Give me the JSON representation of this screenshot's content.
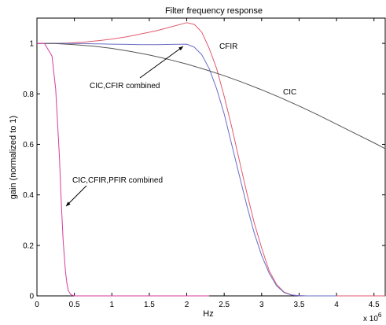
{
  "chart_data": {
    "type": "line",
    "title": "Filter frequency response",
    "xlabel": "Hz",
    "ylabel": "gain (normalized to 1)",
    "x_multiplier": "x 10",
    "x_multiplier_exponent": "6",
    "xlim": [
      0,
      4.65
    ],
    "ylim": [
      0,
      1.1
    ],
    "xticks": [
      0,
      0.5,
      1,
      1.5,
      2,
      2.5,
      3,
      3.5,
      4,
      4.5
    ],
    "xtick_labels": [
      "0",
      "0.5",
      "1",
      "1.5",
      "2",
      "2.5",
      "3",
      "3.5",
      "4",
      "4.5"
    ],
    "yticks": [
      0,
      0.2,
      0.4,
      0.6,
      0.8,
      1
    ],
    "ytick_labels": [
      "0",
      "0.2",
      "0.4",
      "0.6",
      "0.8",
      "1"
    ],
    "grid": false,
    "legend": "none",
    "series": [
      {
        "color": "#e05a6e",
        "x": [
          0,
          0.2,
          0.4,
          0.6,
          0.8,
          1.0,
          1.2,
          1.4,
          1.6,
          1.8,
          2.0,
          2.1,
          2.2,
          2.3,
          2.4,
          2.5,
          2.6,
          2.7,
          2.8,
          2.9,
          3.0,
          3.1,
          3.2,
          3.3,
          3.4,
          3.5,
          3.6,
          3.8,
          4.0,
          4.5,
          4.65
        ],
        "y": [
          1.0,
          1.0,
          1.001,
          1.004,
          1.01,
          1.017,
          1.026,
          1.038,
          1.05,
          1.066,
          1.082,
          1.075,
          1.045,
          0.98,
          0.9,
          0.79,
          0.67,
          0.54,
          0.41,
          0.29,
          0.19,
          0.1,
          0.045,
          0.015,
          0.004,
          0.001,
          0.0,
          0.0,
          0.0,
          0.0,
          0.0
        ]
      },
      {
        "color": "#6a6cc6",
        "x": [
          0,
          0.2,
          0.4,
          0.6,
          0.8,
          1.0,
          1.2,
          1.4,
          1.6,
          1.8,
          2.0,
          2.1,
          2.2,
          2.3,
          2.4,
          2.5,
          2.6,
          2.7,
          2.8,
          2.9,
          3.0,
          3.1,
          3.2,
          3.3,
          3.4,
          3.5,
          3.6,
          3.8,
          4.0
        ],
        "y": [
          1.0,
          1.0,
          1.0,
          0.999,
          0.998,
          0.997,
          0.996,
          0.995,
          0.995,
          0.996,
          0.997,
          0.985,
          0.955,
          0.9,
          0.82,
          0.72,
          0.6,
          0.48,
          0.36,
          0.25,
          0.16,
          0.09,
          0.04,
          0.013,
          0.003,
          0.001,
          0.0,
          0.0,
          0.0
        ]
      },
      {
        "color": "#555555",
        "x": [
          0,
          0.25,
          0.5,
          0.75,
          1.0,
          1.25,
          1.5,
          1.75,
          2.0,
          2.25,
          2.5,
          2.75,
          3.0,
          3.25,
          3.5,
          3.75,
          4.0,
          4.25,
          4.5,
          4.65
        ],
        "y": [
          1.0,
          0.999,
          0.995,
          0.989,
          0.98,
          0.968,
          0.954,
          0.937,
          0.918,
          0.896,
          0.872,
          0.845,
          0.816,
          0.785,
          0.752,
          0.717,
          0.68,
          0.643,
          0.606,
          0.583
        ]
      },
      {
        "color": "#d63ca0",
        "x": [
          0,
          0.1,
          0.2,
          0.25,
          0.3,
          0.32,
          0.35,
          0.38,
          0.4,
          0.42,
          0.45,
          0.48,
          0.5,
          0.6,
          0.8,
          1.0,
          1.5,
          2.0,
          2.3
        ],
        "y": [
          1.0,
          1.0,
          0.95,
          0.82,
          0.55,
          0.4,
          0.22,
          0.1,
          0.05,
          0.02,
          0.006,
          0.002,
          0.0,
          0.0,
          0.0,
          0.0,
          0.0,
          0.0,
          0.0
        ]
      }
    ],
    "annotations": [
      {
        "text": "CFIR"
      },
      {
        "text": "CIC,CFIR combined"
      },
      {
        "text": "CIC"
      },
      {
        "text": "CIC,CFIR,PFIR combined"
      }
    ]
  }
}
